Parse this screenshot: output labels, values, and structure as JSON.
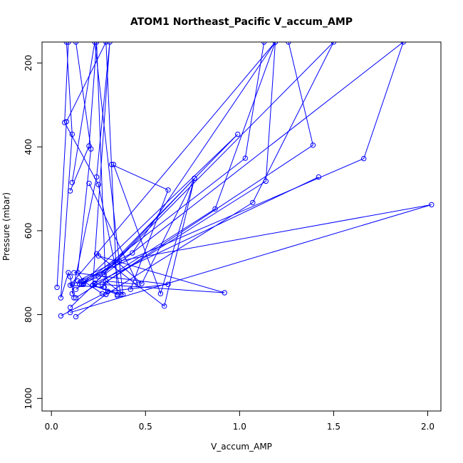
{
  "chart_data": {
    "type": "line",
    "title": "ATOM1 Northeast_Pacific V_accum_AMP",
    "xlabel": "V_accum_AMP",
    "ylabel": "Pressure (mbar)",
    "xlim": [
      -0.05,
      2.07
    ],
    "ylim": [
      1030,
      150
    ],
    "y_reversed": true,
    "x_ticks": [
      0.0,
      0.5,
      1.0,
      1.5,
      2.0
    ],
    "x_tick_labels": [
      "0.0",
      "0.5",
      "1.0",
      "1.5",
      "2.0"
    ],
    "y_ticks": [
      200,
      400,
      600,
      800,
      1000
    ],
    "y_tick_labels": [
      "200",
      "400",
      "600",
      "800",
      "1000"
    ],
    "grid": false,
    "legend": "none",
    "color": "#0000ff",
    "marker": "open-circle",
    "series": [
      {
        "x": [
          0.08,
          0.11,
          0.05,
          0.09,
          0.1,
          0.12
        ],
        "y": [
          150,
          370,
          760,
          700,
          710,
          760
        ]
      },
      {
        "x": [
          0.13,
          0.21,
          0.14,
          0.17,
          0.27
        ],
        "y": [
          150,
          405,
          700,
          720,
          750
        ]
      },
      {
        "x": [
          0.03,
          0.08,
          0.29,
          0.35
        ],
        "y": [
          735,
          340,
          150,
          755
        ]
      },
      {
        "x": [
          0.09,
          0.07,
          0.25,
          0.37,
          0.22
        ],
        "y": [
          150,
          342,
          490,
          752,
          730
        ]
      },
      {
        "x": [
          0.11,
          0.24,
          0.31,
          0.22,
          0.35
        ],
        "y": [
          750,
          472,
          150,
          730,
          752
        ]
      },
      {
        "x": [
          0.1,
          0.2,
          0.24,
          0.29,
          0.13
        ],
        "y": [
          505,
          398,
          150,
          752,
          805
        ]
      },
      {
        "x": [
          0.11,
          0.23,
          0.38,
          0.29,
          0.46,
          0.2
        ],
        "y": [
          485,
          150,
          752,
          720,
          728,
          487
        ]
      },
      {
        "x": [
          0.32,
          0.62,
          0.42
        ],
        "y": [
          442,
          503,
          740
        ]
      },
      {
        "x": [
          0.33,
          0.58,
          0.76,
          0.6,
          0.24
        ],
        "y": [
          442,
          750,
          475,
          780,
          655
        ]
      },
      {
        "x": [
          0.05,
          0.3,
          0.62,
          0.12
        ],
        "y": [
          803,
          745,
          728,
          700
        ]
      },
      {
        "x": [
          0.1,
          0.23,
          0.92,
          0.25
        ],
        "y": [
          783,
          727,
          748,
          660
        ]
      },
      {
        "x": [
          0.17,
          0.36,
          2.02,
          0.1
        ],
        "y": [
          728,
          672,
          538,
          795
        ]
      },
      {
        "x": [
          0.14,
          0.43,
          1.19,
          0.1,
          0.28
        ],
        "y": [
          720,
          653,
          150,
          730,
          735
        ]
      },
      {
        "x": [
          0.16,
          0.99,
          0.25,
          0.17
        ],
        "y": [
          728,
          370,
          710,
          725
        ]
      },
      {
        "x": [
          0.13,
          1.03,
          1.13
        ],
        "y": [
          740,
          427,
          150
        ]
      },
      {
        "x": [
          0.13,
          0.87,
          1.19,
          1.14,
          0.27,
          1.39,
          1.26
        ],
        "y": [
          760,
          548,
          150,
          482,
          728,
          396,
          150
        ]
      },
      {
        "x": [
          0.29,
          1.07,
          1.5,
          0.23,
          1.42
        ],
        "y": [
          752,
          533,
          150,
          725,
          472
        ]
      },
      {
        "x": [
          0.11,
          1.66,
          1.87,
          0.28
        ],
        "y": [
          728,
          428,
          150,
          705
        ]
      },
      {
        "x": [
          0.22,
          0.76,
          0.48,
          0.35,
          0.15
        ],
        "y": [
          730,
          475,
          726,
          675,
          728
        ]
      }
    ]
  }
}
